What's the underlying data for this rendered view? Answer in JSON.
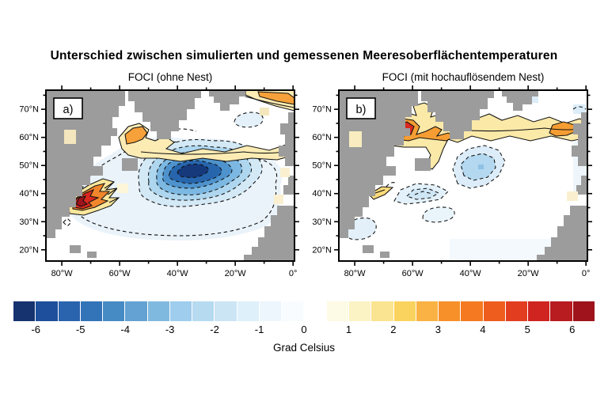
{
  "title": "Unterschied zwischen simulierten und gemessenen Meeresoberflächentemperaturen",
  "panels": [
    {
      "corner_label": "a)",
      "title": "FOCI (ohne Nest)",
      "x_ticks": [
        "80°W",
        "60°W",
        "40°W",
        "20°W",
        "0°"
      ],
      "y_ticks": [
        "70°N",
        "60°N",
        "50°N",
        "40°N",
        "30°N",
        "20°N"
      ]
    },
    {
      "corner_label": "b)",
      "title": "FOCI (mit hochauflösendem Nest)",
      "x_ticks": [
        "80°W",
        "60°W",
        "40°W",
        "20°W",
        "0°"
      ],
      "y_ticks": [
        "70°N",
        "60°N",
        "50°N",
        "40°N",
        "30°N",
        "20°N"
      ]
    }
  ],
  "colorbar": {
    "label": "Grad Celsius",
    "tick_labels": [
      "-6",
      "-5",
      "-4",
      "-3",
      "-2",
      "-1",
      "0",
      "1",
      "2",
      "3",
      "4",
      "5",
      "6"
    ],
    "colors": [
      "#16336f",
      "#1d4f9c",
      "#2a63ae",
      "#3374b8",
      "#468bc4",
      "#63a2d2",
      "#80b9df",
      "#9ecded",
      "#b6dbf1",
      "#cbe5f5",
      "#def0fa",
      "#ecf6fc",
      "#f8fcfe",
      "#ffffff",
      "#fdfae5",
      "#fcf3c4",
      "#fbe491",
      "#fad35e",
      "#f9b243",
      "#f79029",
      "#f47920",
      "#ee5d1e",
      "#e33d20",
      "#d02420",
      "#b81b20",
      "#9e131c"
    ]
  },
  "colors": {
    "land_mask": "#9c9c9c",
    "frame": "#000000",
    "contour_lines": "#111111",
    "cold_bias_core": "#16397c",
    "warm_bias_core": "#d8281f"
  },
  "chart_data": [
    {
      "type": "heatmap",
      "subtype": "filled_contour_map",
      "panel": "a",
      "title": "FOCI (ohne Nest)",
      "region": "Nordatlantik",
      "x_tick_labels": [
        "80°W",
        "60°W",
        "40°W",
        "20°W",
        "0°"
      ],
      "y_tick_labels": [
        "70°N",
        "60°N",
        "50°N",
        "40°N",
        "30°N",
        "20°N"
      ],
      "value_units": "Grad Celsius",
      "value_range": [
        -6.5,
        6.5
      ],
      "colorbar_ticks": [
        -6,
        -5,
        -4,
        -3,
        -2,
        -1,
        0,
        1,
        2,
        3,
        4,
        5,
        6
      ],
      "contour_style": "gestrichelt = negativ, durchgezogen = positiv",
      "features": [
        {
          "feature": "großer Kaltbias im zentralen Nordatlantik",
          "center": "ca. 47°N, 35°W",
          "min_value_c": -6
        },
        {
          "feature": "starker Warmbias vor der US-Ostküste (Golfstromregion)",
          "center": "ca. 39°N, 69°W",
          "max_value_c": 6
        },
        {
          "feature": "Warmband entlang ca. 60°N südlich von Grönland bis Europa",
          "value_c": "+1 bis +3"
        },
        {
          "feature": "Warmbias im Nordost-Eck (Europäisches Nordmeer)",
          "value_c": "+2 bis +4"
        },
        {
          "feature": "Land grau maskiert"
        }
      ]
    },
    {
      "type": "heatmap",
      "subtype": "filled_contour_map",
      "panel": "b",
      "title": "FOCI (mit hochauflösendem Nest)",
      "region": "Nordatlantik",
      "x_tick_labels": [
        "80°W",
        "60°W",
        "40°W",
        "20°W",
        "0°"
      ],
      "y_tick_labels": [
        "70°N",
        "60°N",
        "50°N",
        "40°N",
        "30°N",
        "20°N"
      ],
      "value_units": "Grad Celsius",
      "value_range": [
        -6.5,
        6.5
      ],
      "colorbar_ticks": [
        -6,
        -5,
        -4,
        -3,
        -2,
        -1,
        0,
        1,
        2,
        3,
        4,
        5,
        6
      ],
      "contour_style": "gestrichelt = negativ, durchgezogen = positiv",
      "features": [
        {
          "feature": "Warmband entlang ca. 58-65°N von der Labradorsee bis Europa",
          "value_c": "+1 bis +3"
        },
        {
          "feature": "Warmbias-Kern in der Labradorsee",
          "center": "ca. 60°N, 58°W",
          "max_value_c": 5
        },
        {
          "feature": "schwache Kaltbias-Flecken im zentralen Nordatlantik",
          "value_c": "-1 bis -2"
        },
        {
          "feature": "Kaltbias gegenüber Panel a deutlich reduziert"
        },
        {
          "feature": "Land grau maskiert"
        }
      ]
    }
  ]
}
